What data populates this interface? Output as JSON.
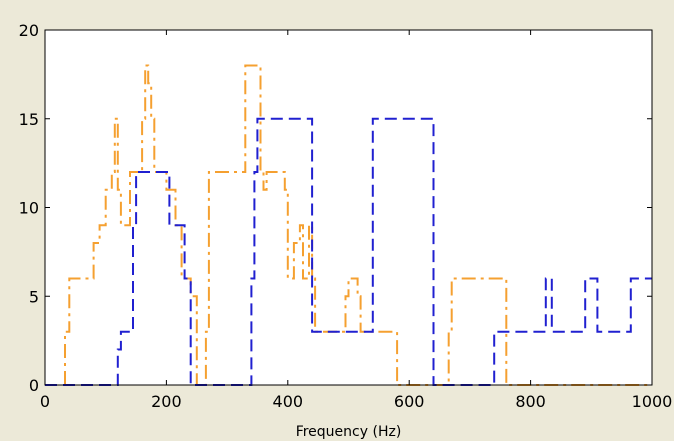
{
  "chart_data": {
    "type": "line",
    "title": "",
    "xlabel": "Frequency (Hz)",
    "ylabel": "",
    "xlim": [
      0,
      1000
    ],
    "ylim": [
      0,
      20
    ],
    "xticks": [
      0,
      200,
      400,
      600,
      800,
      1000
    ],
    "yticks": [
      0,
      5,
      10,
      15,
      20
    ],
    "grid": false,
    "legend": "none",
    "colors": {
      "figure_background": "#ECE9D8",
      "plot_background": "#FFFFFF",
      "axis": "#000000"
    },
    "series": [
      {
        "color": "#F5A030",
        "dash": "dash-dot",
        "points": [
          [
            33,
            0
          ],
          [
            33,
            3
          ],
          [
            40,
            3
          ],
          [
            40,
            6
          ],
          [
            80,
            6
          ],
          [
            80,
            8
          ],
          [
            90,
            8
          ],
          [
            90,
            9
          ],
          [
            100,
            9
          ],
          [
            100,
            11
          ],
          [
            110,
            11
          ],
          [
            110,
            12
          ],
          [
            115,
            12
          ],
          [
            115,
            15
          ],
          [
            120,
            15
          ],
          [
            120,
            11
          ],
          [
            125,
            11
          ],
          [
            125,
            9
          ],
          [
            140,
            9
          ],
          [
            140,
            12
          ],
          [
            160,
            12
          ],
          [
            160,
            15
          ],
          [
            165,
            15
          ],
          [
            165,
            18
          ],
          [
            170,
            18
          ],
          [
            170,
            17
          ],
          [
            175,
            17
          ],
          [
            175,
            15
          ],
          [
            180,
            15
          ],
          [
            180,
            12
          ],
          [
            200,
            12
          ],
          [
            200,
            11
          ],
          [
            215,
            11
          ],
          [
            215,
            9
          ],
          [
            225,
            9
          ],
          [
            225,
            6
          ],
          [
            240,
            6
          ],
          [
            240,
            5
          ],
          [
            250,
            5
          ],
          [
            250,
            0
          ],
          [
            265,
            0
          ],
          [
            265,
            3
          ],
          [
            270,
            3
          ],
          [
            270,
            12
          ],
          [
            330,
            12
          ],
          [
            330,
            18
          ],
          [
            355,
            18
          ],
          [
            355,
            12
          ],
          [
            360,
            12
          ],
          [
            360,
            11
          ],
          [
            365,
            11
          ],
          [
            365,
            12
          ],
          [
            395,
            12
          ],
          [
            395,
            11
          ],
          [
            400,
            11
          ],
          [
            400,
            6
          ],
          [
            410,
            6
          ],
          [
            410,
            8
          ],
          [
            420,
            8
          ],
          [
            420,
            9
          ],
          [
            425,
            9
          ],
          [
            425,
            6
          ],
          [
            435,
            6
          ],
          [
            435,
            9
          ],
          [
            440,
            9
          ],
          [
            440,
            6
          ],
          [
            445,
            6
          ],
          [
            445,
            3
          ],
          [
            495,
            3
          ],
          [
            495,
            5
          ],
          [
            500,
            5
          ],
          [
            500,
            6
          ],
          [
            515,
            6
          ],
          [
            515,
            5
          ],
          [
            520,
            5
          ],
          [
            520,
            3
          ],
          [
            580,
            3
          ],
          [
            580,
            0
          ],
          [
            590,
            0
          ],
          [
            590,
            0
          ],
          [
            665,
            0
          ],
          [
            665,
            3
          ],
          [
            670,
            3
          ],
          [
            670,
            6
          ],
          [
            760,
            6
          ],
          [
            760,
            0
          ],
          [
            1000,
            0
          ]
        ]
      },
      {
        "color": "#2020D0",
        "dash": "dashed",
        "points": [
          [
            0,
            0
          ],
          [
            120,
            0
          ],
          [
            120,
            2
          ],
          [
            125,
            2
          ],
          [
            125,
            3
          ],
          [
            145,
            3
          ],
          [
            145,
            9
          ],
          [
            150,
            9
          ],
          [
            150,
            12
          ],
          [
            205,
            12
          ],
          [
            205,
            9
          ],
          [
            230,
            9
          ],
          [
            230,
            6
          ],
          [
            240,
            6
          ],
          [
            240,
            0
          ],
          [
            340,
            0
          ],
          [
            340,
            6
          ],
          [
            345,
            6
          ],
          [
            345,
            12
          ],
          [
            350,
            12
          ],
          [
            350,
            15
          ],
          [
            440,
            15
          ],
          [
            440,
            3
          ],
          [
            540,
            3
          ],
          [
            540,
            15
          ],
          [
            640,
            15
          ],
          [
            640,
            0
          ],
          [
            740,
            0
          ],
          [
            740,
            3
          ],
          [
            825,
            3
          ],
          [
            825,
            6
          ],
          [
            835,
            6
          ],
          [
            835,
            3
          ],
          [
            890,
            3
          ],
          [
            890,
            6
          ],
          [
            910,
            6
          ],
          [
            910,
            3
          ],
          [
            965,
            3
          ],
          [
            965,
            6
          ],
          [
            1000,
            6
          ]
        ]
      }
    ]
  }
}
